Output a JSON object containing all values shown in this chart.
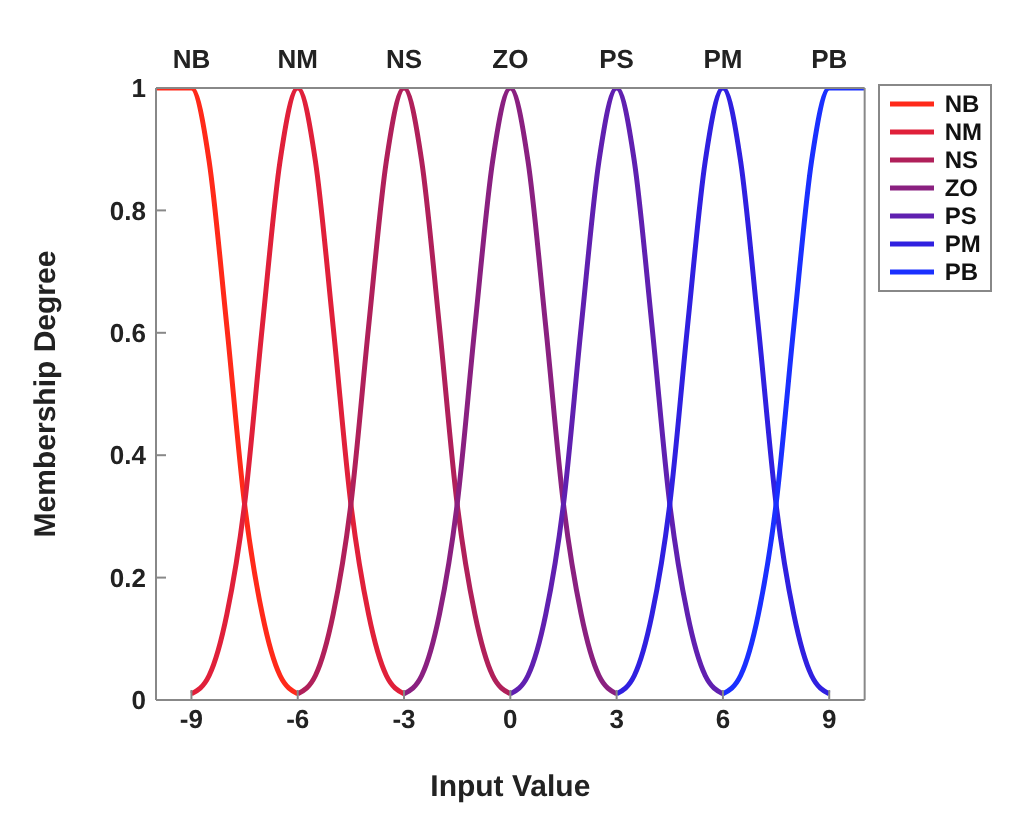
{
  "chart_data": {
    "type": "line",
    "xlabel": "Input Value",
    "ylabel": "Membership Degree",
    "xlim": [
      -10,
      10
    ],
    "xticks": [
      -9,
      -6,
      -3,
      0,
      3,
      6,
      9
    ],
    "annotations": [
      {
        "text": "NB",
        "x": -9,
        "y": 1
      },
      {
        "text": "NM",
        "x": -6,
        "y": 1
      },
      {
        "text": "NS",
        "x": -3,
        "y": 1
      },
      {
        "text": "ZO",
        "x": 0,
        "y": 1
      },
      {
        "text": "PS",
        "x": 3,
        "y": 1
      },
      {
        "text": "PM",
        "x": 6,
        "y": 1
      },
      {
        "text": "PB",
        "x": 9,
        "y": 1
      }
    ],
    "ylim": [
      0,
      1
    ],
    "yticks": [
      0,
      0.2,
      0.4,
      0.6,
      0.8,
      1
    ],
    "legend": "right",
    "marker": "none",
    "line_style": "solid",
    "series": [
      {
        "name": "NB",
        "color": "#ff2a1a",
        "x": [
          -10,
          -9.5,
          -9,
          -8.5,
          -8,
          -7.5,
          -7,
          -6.5,
          -6
        ],
        "values": [
          1,
          1,
          1,
          0.88,
          0.61,
          0.32,
          0.14,
          0.04,
          0.01
        ]
      },
      {
        "name": "NM",
        "color": "#e0203a",
        "x": [
          -9,
          -8.5,
          -8,
          -7.5,
          -7,
          -6.5,
          -6,
          -5.5,
          -5,
          -4.5,
          -4,
          -3.5,
          -3
        ],
        "values": [
          0.01,
          0.04,
          0.14,
          0.32,
          0.61,
          0.88,
          1,
          0.88,
          0.61,
          0.32,
          0.14,
          0.04,
          0.01
        ]
      },
      {
        "name": "NS",
        "color": "#b0205a",
        "x": [
          -6,
          -5.5,
          -5,
          -4.5,
          -4,
          -3.5,
          -3,
          -2.5,
          -2,
          -1.5,
          -1,
          -0.5,
          0
        ],
        "values": [
          0.01,
          0.04,
          0.14,
          0.32,
          0.61,
          0.88,
          1,
          0.88,
          0.61,
          0.32,
          0.14,
          0.04,
          0.01
        ]
      },
      {
        "name": "ZO",
        "color": "#8a2080",
        "x": [
          -3,
          -2.5,
          -2,
          -1.5,
          -1,
          -0.5,
          0,
          0.5,
          1,
          1.5,
          2,
          2.5,
          3
        ],
        "values": [
          0.01,
          0.04,
          0.14,
          0.32,
          0.61,
          0.88,
          1,
          0.88,
          0.61,
          0.32,
          0.14,
          0.04,
          0.01
        ]
      },
      {
        "name": "PS",
        "color": "#6020b0",
        "x": [
          0,
          0.5,
          1,
          1.5,
          2,
          2.5,
          3,
          3.5,
          4,
          4.5,
          5,
          5.5,
          6
        ],
        "values": [
          0.01,
          0.04,
          0.14,
          0.32,
          0.61,
          0.88,
          1,
          0.88,
          0.61,
          0.32,
          0.14,
          0.04,
          0.01
        ]
      },
      {
        "name": "PM",
        "color": "#3020e0",
        "x": [
          3,
          3.5,
          4,
          4.5,
          5,
          5.5,
          6,
          6.5,
          7,
          7.5,
          8,
          8.5,
          9
        ],
        "values": [
          0.01,
          0.04,
          0.14,
          0.32,
          0.61,
          0.88,
          1,
          0.88,
          0.61,
          0.32,
          0.14,
          0.04,
          0.01
        ]
      },
      {
        "name": "PB",
        "color": "#1a30ff",
        "x": [
          6,
          6.5,
          7,
          7.5,
          8,
          8.5,
          9,
          9.5,
          10
        ],
        "values": [
          0.01,
          0.04,
          0.14,
          0.32,
          0.61,
          0.88,
          1,
          1,
          1
        ]
      }
    ]
  }
}
